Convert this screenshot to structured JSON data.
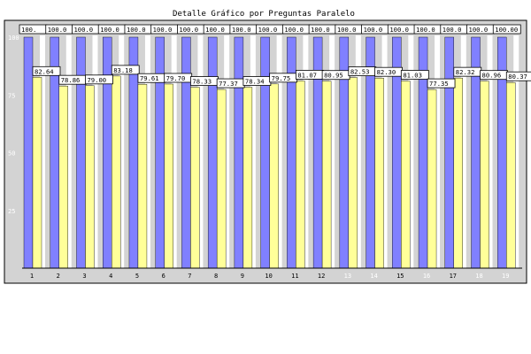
{
  "chart_data": {
    "type": "bar",
    "title": "Detalle Gráfico por Preguntas Paralelo",
    "xlabel": "",
    "ylabel": "",
    "ylim": [
      0,
      100
    ],
    "y_ticks": [
      "25",
      "50",
      "75",
      "100"
    ],
    "grid": false,
    "categories": [
      "1",
      "2",
      "3",
      "4",
      "5",
      "6",
      "7",
      "8",
      "9",
      "10",
      "11",
      "12",
      "13",
      "14",
      "15",
      "16",
      "17",
      "18",
      "19"
    ],
    "category_label_colors": [
      "#000000",
      "#000000",
      "#000000",
      "#000000",
      "#000000",
      "#000000",
      "#000000",
      "#000000",
      "#000000",
      "#000000",
      "#000000",
      "#000000",
      "#ffffff",
      "#ffffff",
      "#000000",
      "#ffffff",
      "#000000",
      "#ffffff",
      "#ffffff"
    ],
    "series": [
      {
        "color": "#8080ff",
        "values": [
          100,
          100,
          100,
          100,
          100,
          100,
          100,
          100,
          100,
          100,
          100,
          100,
          100,
          100,
          100,
          100,
          100,
          100,
          100
        ],
        "value_labels": [
          "100.",
          "100.0",
          "100.0",
          "100.0",
          "100.0",
          "100.0",
          "100.0",
          "100.0",
          "100.0",
          "100.0",
          "100.0",
          "100.0",
          "100.0",
          "100.0",
          "100.0",
          "100.0",
          "100.0",
          "100.0",
          "100.00"
        ]
      },
      {
        "color": "#ffff99",
        "values": [
          82.64,
          78.86,
          79.0,
          83.18,
          79.61,
          79.7,
          78.33,
          77.37,
          78.34,
          79.75,
          81.07,
          80.95,
          82.53,
          82.3,
          81.03,
          77.35,
          82.32,
          80.96,
          80.37
        ],
        "value_labels": [
          "82.64",
          "78.86",
          "79.00",
          "83.18",
          "79.61",
          "79.70",
          "78.33",
          "77.37",
          "78.34",
          "79.75",
          "81.07",
          "80.95",
          "82.53",
          "82.30",
          "81.03",
          "77.35",
          "82.32",
          "80.96",
          "80.37"
        ]
      }
    ],
    "colors": {
      "background": "#ffffff",
      "frame": "#d3d3d3",
      "plot": "#d3d3d3",
      "column_band": "#ffffff",
      "border": "#000000"
    }
  }
}
